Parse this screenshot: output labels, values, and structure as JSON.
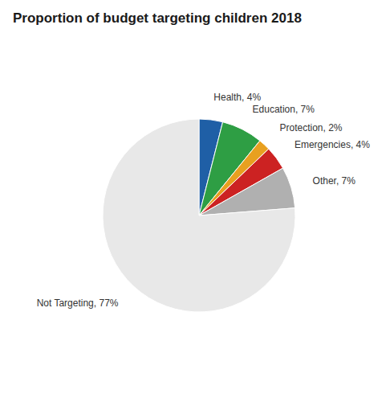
{
  "chart_data": {
    "type": "pie",
    "title": "Proportion of budget targeting children 2018",
    "categories": [
      "Health",
      "Education",
      "Protection",
      "Emergencies",
      "Other",
      "Not Targeting"
    ],
    "values": [
      4,
      7,
      2,
      4,
      7,
      77
    ],
    "value_labels": [
      "Health, 4%",
      "Education, 7%",
      "Protection, 2%",
      "Emergencies, 4%",
      "Other, 7%",
      "Not Targeting, 77%"
    ],
    "colors": [
      "#1f5fa6",
      "#2e9e44",
      "#e8a020",
      "#cc2222",
      "#b0b0b0",
      "#e8e8e8"
    ],
    "data_labels": true
  }
}
